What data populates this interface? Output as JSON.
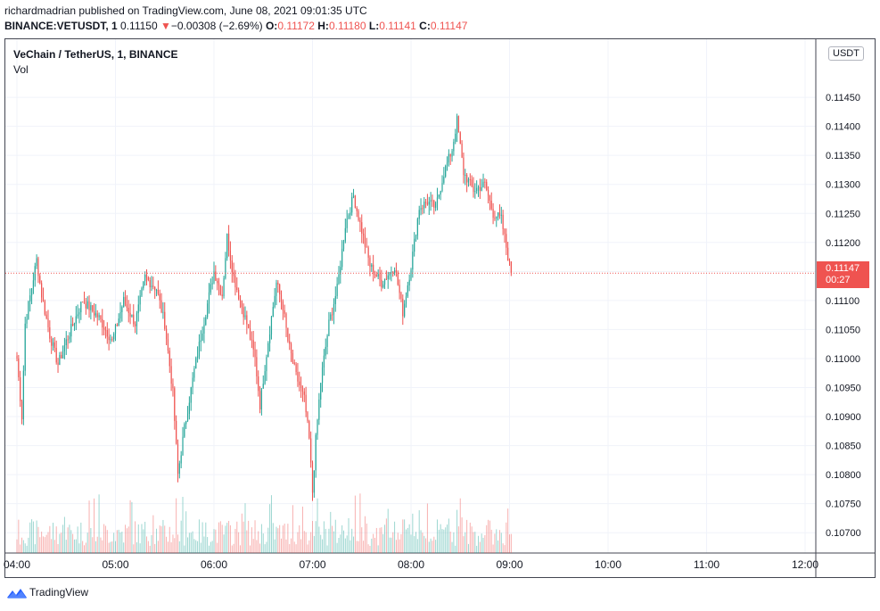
{
  "header": {
    "publisher_line": "richardmadrian published on TradingView.com, June 08, 2021 09:01:35 UTC",
    "symbol": "BINANCE:VETUSDT, 1",
    "price": "0.11150",
    "change": "−0.00308 (−2.69%)",
    "open_label": "O:",
    "open": "0.11172",
    "high_label": "H:",
    "high": "0.11180",
    "low_label": "L:",
    "low": "0.11141",
    "close_label": "C:",
    "close": "0.11147",
    "down_arrow": "▼"
  },
  "legend": {
    "title": "VeChain / TetherUS, 1, BINANCE",
    "volume_label": "Vol"
  },
  "axis": {
    "currency_badge": "USDT",
    "last_price": "0.11147",
    "countdown": "00:27"
  },
  "brand": {
    "name": "TradingView",
    "logo_icon": "tradingview-logo-icon"
  },
  "colors": {
    "up": "#26a69a",
    "down": "#ef5350",
    "grid": "#f0f3fa",
    "axis_text": "#131722"
  },
  "chart_data": {
    "type": "candlestick",
    "title": "VeChain / TetherUS, 1, BINANCE",
    "interval": "1 minute",
    "x_ticks": [
      "04:00",
      "05:00",
      "06:00",
      "07:00",
      "08:00",
      "09:00",
      "10:00",
      "11:00",
      "12:00"
    ],
    "y_ticks": [
      0.107,
      0.1075,
      0.108,
      0.1085,
      0.109,
      0.1095,
      0.11,
      0.1105,
      0.111,
      0.1115,
      0.112,
      0.1125,
      0.113,
      0.1135,
      0.114,
      0.1145
    ],
    "ylim": [
      0.10665,
      0.1155
    ],
    "last_price": 0.11147,
    "grid": true,
    "close_path": [
      [
        "04:00",
        0.11
      ],
      [
        "04:03",
        0.109
      ],
      [
        "04:05",
        0.1106
      ],
      [
        "04:12",
        0.1117
      ],
      [
        "04:15",
        0.1111
      ],
      [
        "04:20",
        0.1104
      ],
      [
        "04:25",
        0.1099
      ],
      [
        "04:30",
        0.1103
      ],
      [
        "04:40",
        0.111
      ],
      [
        "04:50",
        0.1107
      ],
      [
        "04:58",
        0.1103
      ],
      [
        "05:05",
        0.111
      ],
      [
        "05:12",
        0.1106
      ],
      [
        "05:18",
        0.1114
      ],
      [
        "05:25",
        0.1112
      ],
      [
        "05:30",
        0.1106
      ],
      [
        "05:35",
        0.1094
      ],
      [
        "05:38",
        0.108
      ],
      [
        "05:42",
        0.1088
      ],
      [
        "05:48",
        0.1098
      ],
      [
        "05:55",
        0.1108
      ],
      [
        "06:00",
        0.1115
      ],
      [
        "06:05",
        0.1111
      ],
      [
        "06:08",
        0.1121
      ],
      [
        "06:12",
        0.1114
      ],
      [
        "06:20",
        0.1106
      ],
      [
        "06:25",
        0.11
      ],
      [
        "06:28",
        0.1092
      ],
      [
        "06:33",
        0.1103
      ],
      [
        "06:38",
        0.1113
      ],
      [
        "06:42",
        0.1109
      ],
      [
        "06:45",
        0.1103
      ],
      [
        "06:50",
        0.1097
      ],
      [
        "06:55",
        0.1093
      ],
      [
        "06:58",
        0.1086
      ],
      [
        "07:00",
        0.1077
      ],
      [
        "07:02",
        0.1086
      ],
      [
        "07:05",
        0.1096
      ],
      [
        "07:10",
        0.1106
      ],
      [
        "07:15",
        0.1112
      ],
      [
        "07:20",
        0.1123
      ],
      [
        "07:25",
        0.1128
      ],
      [
        "07:30",
        0.1122
      ],
      [
        "07:35",
        0.1116
      ],
      [
        "07:42",
        0.1113
      ],
      [
        "07:50",
        0.1116
      ],
      [
        "07:55",
        0.1108
      ],
      [
        "08:00",
        0.1116
      ],
      [
        "08:05",
        0.1126
      ],
      [
        "08:10",
        0.1127
      ],
      [
        "08:15",
        0.1126
      ],
      [
        "08:20",
        0.1132
      ],
      [
        "08:25",
        0.1136
      ],
      [
        "08:28",
        0.1141
      ],
      [
        "08:32",
        0.1132
      ],
      [
        "08:38",
        0.1129
      ],
      [
        "08:45",
        0.113
      ],
      [
        "08:50",
        0.1125
      ],
      [
        "08:55",
        0.1124
      ],
      [
        "09:00",
        0.1116
      ],
      [
        "09:01",
        0.11147
      ]
    ]
  }
}
